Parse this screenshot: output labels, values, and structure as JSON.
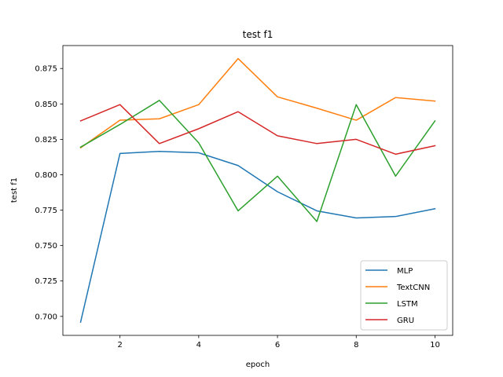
{
  "chart_data": {
    "type": "line",
    "title": "test f1",
    "xlabel": "epoch",
    "ylabel": "test f1",
    "x": [
      1,
      2,
      3,
      4,
      5,
      6,
      7,
      8,
      9,
      10
    ],
    "xlim": [
      0.55,
      10.45
    ],
    "ylim": [
      0.6866,
      0.8912
    ],
    "xticks": [
      2,
      4,
      6,
      8,
      10
    ],
    "yticks": [
      0.7,
      0.725,
      0.75,
      0.775,
      0.8,
      0.825,
      0.85,
      0.875
    ],
    "xtick_labels": [
      "2",
      "4",
      "6",
      "8",
      "10"
    ],
    "ytick_labels": [
      "0.700",
      "0.725",
      "0.750",
      "0.775",
      "0.800",
      "0.825",
      "0.850",
      "0.875"
    ],
    "grid": false,
    "legend_position": "lower right",
    "series": [
      {
        "name": "MLP",
        "color": "#1f77b4",
        "values": [
          0.696,
          0.815,
          0.8165,
          0.8155,
          0.8065,
          0.788,
          0.7745,
          0.7695,
          0.7705,
          0.776
        ]
      },
      {
        "name": "TextCNN",
        "color": "#ff7f0e",
        "values": [
          0.819,
          0.8385,
          0.8395,
          0.8495,
          0.882,
          0.855,
          0.847,
          0.8385,
          0.8545,
          0.852
        ]
      },
      {
        "name": "LSTM",
        "color": "#2ca02c",
        "values": [
          0.8195,
          0.8355,
          0.8525,
          0.8225,
          0.7745,
          0.799,
          0.767,
          0.8495,
          0.799,
          0.838
        ]
      },
      {
        "name": "GRU",
        "color": "#d62728",
        "values": [
          0.838,
          0.8495,
          0.822,
          0.8325,
          0.8445,
          0.8275,
          0.822,
          0.825,
          0.8145,
          0.8205
        ]
      }
    ]
  }
}
